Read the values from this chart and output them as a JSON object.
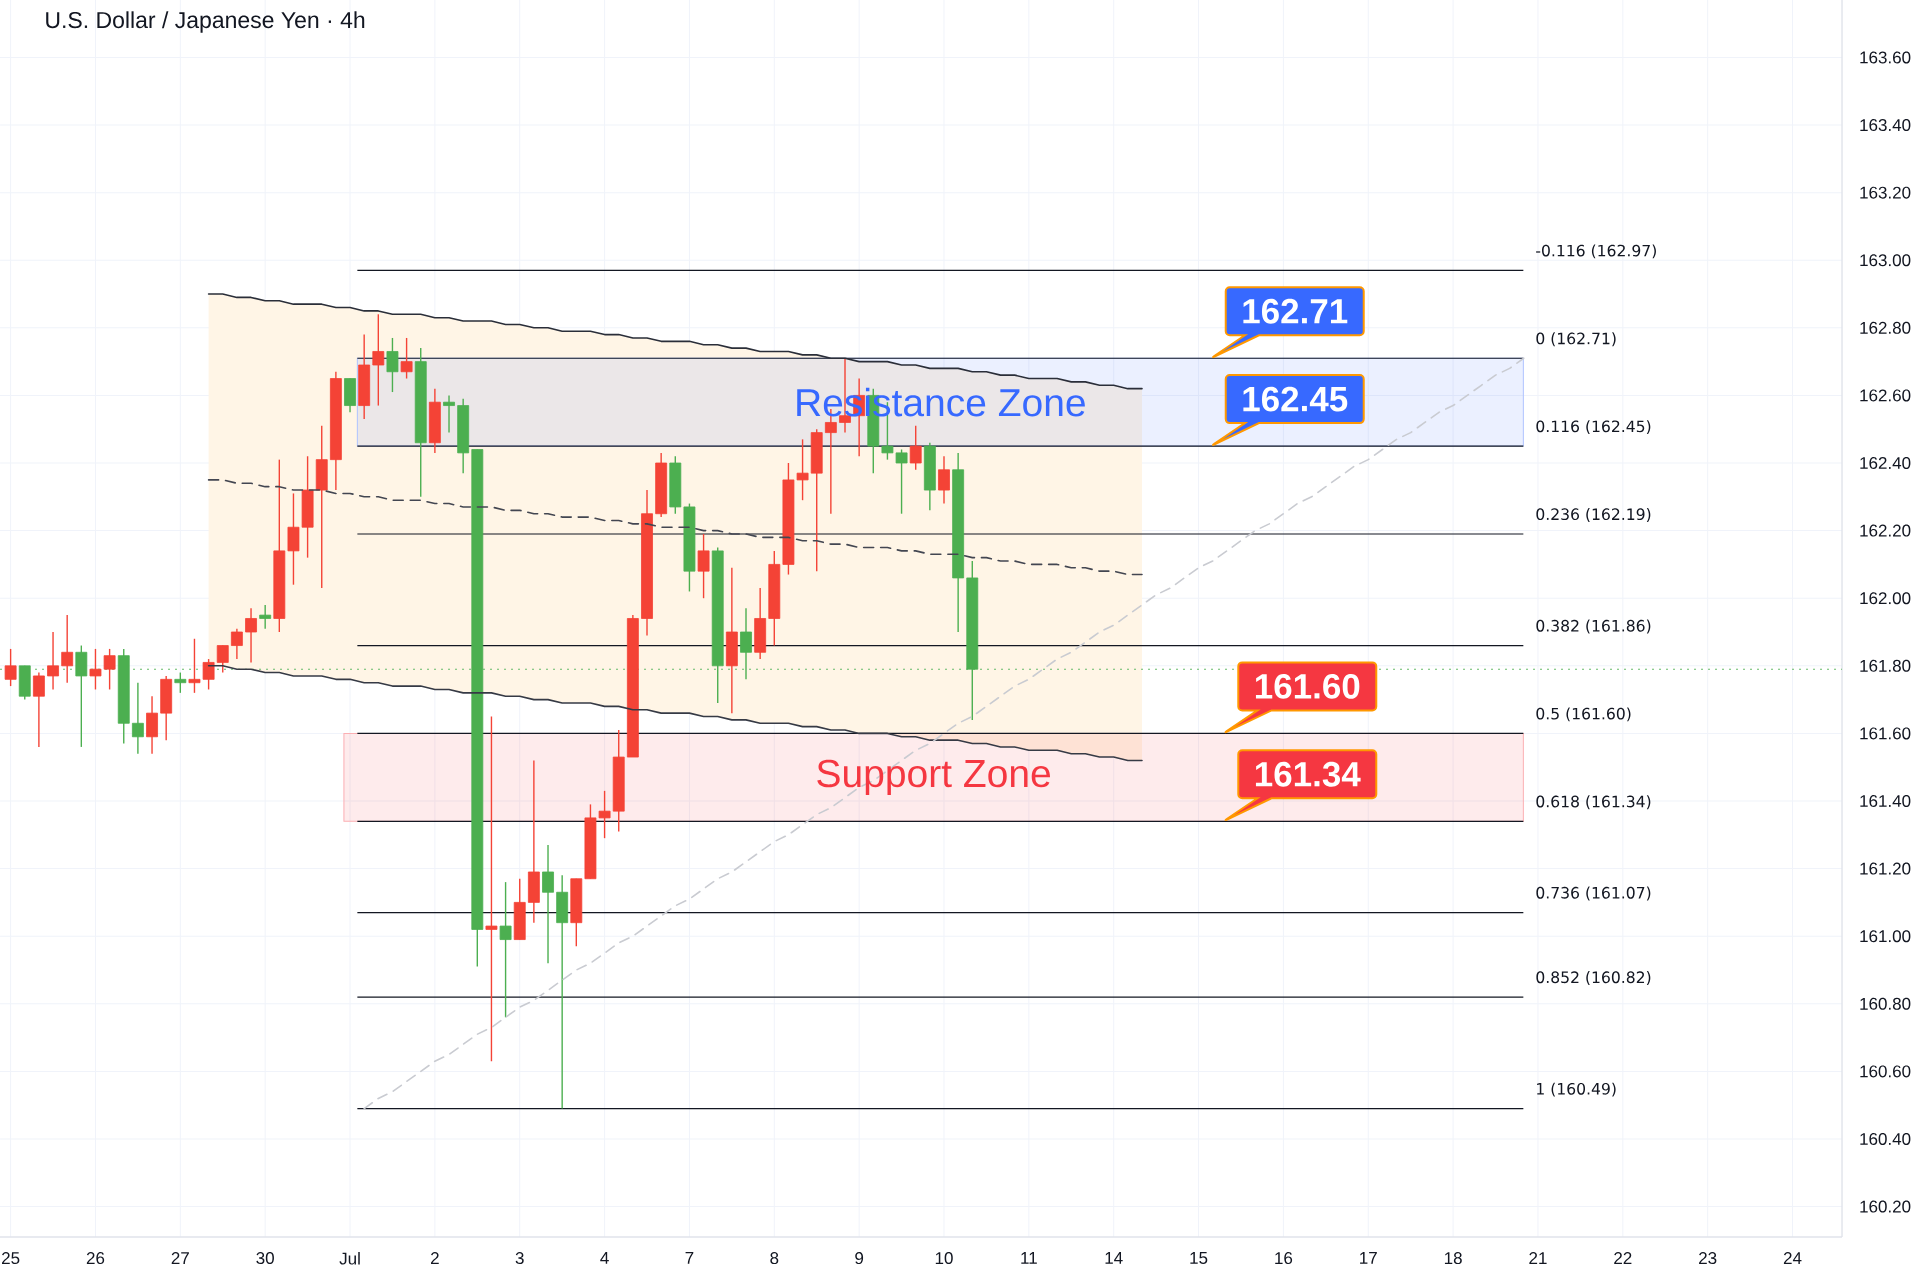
{
  "chart_data": {
    "type": "candlestick",
    "title": "U.S. Dollar / Japanese Yen · 4h",
    "categories": [
      "25",
      null,
      null,
      null,
      null,
      null,
      "26",
      null,
      null,
      null,
      null,
      null,
      "27",
      null,
      null,
      null,
      null,
      null,
      "30",
      null,
      null,
      null,
      null,
      null,
      "Jul",
      null,
      null,
      null,
      null,
      null,
      "2",
      null,
      null,
      null,
      null,
      null,
      "3",
      null,
      null,
      null,
      null,
      null,
      "4",
      null,
      null,
      null,
      null,
      null,
      "7",
      null,
      null,
      null,
      null,
      null,
      "8",
      null,
      null,
      null,
      null,
      null,
      "9",
      null,
      null,
      null,
      null,
      null,
      "10",
      null,
      null,
      null,
      null,
      null,
      "11",
      null,
      null,
      null,
      null,
      null,
      "14",
      null,
      null,
      null,
      null,
      null,
      "15",
      null,
      null,
      null,
      null,
      null,
      "16",
      null,
      null,
      null,
      null,
      null,
      "17",
      null,
      null,
      null,
      null,
      null,
      "18",
      null,
      null,
      null,
      null,
      null,
      "21",
      null,
      null,
      null,
      null,
      null,
      "22",
      null,
      null,
      null,
      null,
      null,
      "23",
      null,
      null,
      null,
      null,
      null,
      "24",
      null,
      null,
      null
    ],
    "ohlc": [
      [
        161.76,
        161.85,
        161.74,
        161.8
      ],
      [
        161.8,
        161.8,
        161.7,
        161.71
      ],
      [
        161.71,
        161.78,
        161.56,
        161.77
      ],
      [
        161.77,
        161.9,
        161.73,
        161.8
      ],
      [
        161.8,
        161.95,
        161.75,
        161.84
      ],
      [
        161.84,
        161.86,
        161.56,
        161.77
      ],
      [
        161.77,
        161.85,
        161.73,
        161.79
      ],
      [
        161.79,
        161.85,
        161.73,
        161.83
      ],
      [
        161.83,
        161.85,
        161.57,
        161.63
      ],
      [
        161.63,
        161.75,
        161.54,
        161.59
      ],
      [
        161.59,
        161.71,
        161.54,
        161.66
      ],
      [
        161.66,
        161.77,
        161.58,
        161.76
      ],
      [
        161.76,
        161.78,
        161.72,
        161.75
      ],
      [
        161.75,
        161.88,
        161.72,
        161.76
      ],
      [
        161.76,
        161.82,
        161.73,
        161.81
      ],
      [
        161.81,
        161.86,
        161.78,
        161.86
      ],
      [
        161.86,
        161.91,
        161.82,
        161.9
      ],
      [
        161.9,
        161.97,
        161.81,
        161.94
      ],
      [
        161.95,
        161.98,
        161.91,
        161.94
      ],
      [
        161.94,
        162.41,
        161.9,
        162.14
      ],
      [
        162.14,
        162.31,
        162.04,
        162.21
      ],
      [
        162.21,
        162.42,
        162.12,
        162.32
      ],
      [
        162.32,
        162.51,
        162.03,
        162.41
      ],
      [
        162.41,
        162.67,
        162.32,
        162.65
      ],
      [
        162.65,
        162.65,
        162.55,
        162.57
      ],
      [
        162.57,
        162.78,
        162.53,
        162.69
      ],
      [
        162.69,
        162.84,
        162.57,
        162.73
      ],
      [
        162.73,
        162.77,
        162.61,
        162.67
      ],
      [
        162.67,
        162.77,
        162.65,
        162.7
      ],
      [
        162.7,
        162.74,
        162.3,
        162.46
      ],
      [
        162.46,
        162.62,
        162.43,
        162.58
      ],
      [
        162.58,
        162.6,
        162.49,
        162.57
      ],
      [
        162.57,
        162.59,
        162.37,
        162.43
      ],
      [
        162.44,
        162.44,
        160.91,
        161.02
      ],
      [
        161.02,
        161.65,
        160.63,
        161.03
      ],
      [
        161.03,
        161.16,
        160.76,
        160.99
      ],
      [
        160.99,
        161.17,
        160.99,
        161.1
      ],
      [
        161.1,
        161.52,
        161.04,
        161.19
      ],
      [
        161.19,
        161.27,
        160.92,
        161.13
      ],
      [
        161.13,
        161.18,
        160.49,
        161.04
      ],
      [
        161.04,
        161.17,
        160.97,
        161.17
      ],
      [
        161.17,
        161.39,
        161.17,
        161.35
      ],
      [
        161.35,
        161.43,
        161.29,
        161.37
      ],
      [
        161.37,
        161.61,
        161.31,
        161.53
      ],
      [
        161.53,
        161.95,
        161.53,
        161.94
      ],
      [
        161.94,
        162.32,
        161.89,
        162.25
      ],
      [
        162.25,
        162.43,
        162.24,
        162.4
      ],
      [
        162.4,
        162.42,
        162.25,
        162.27
      ],
      [
        162.27,
        162.28,
        162.02,
        162.08
      ],
      [
        162.08,
        162.19,
        162.0,
        162.14
      ],
      [
        162.14,
        162.15,
        161.69,
        161.8
      ],
      [
        161.8,
        162.09,
        161.66,
        161.9
      ],
      [
        161.9,
        161.97,
        161.76,
        161.84
      ],
      [
        161.84,
        162.03,
        161.82,
        161.94
      ],
      [
        161.94,
        162.14,
        161.86,
        162.1
      ],
      [
        162.1,
        162.4,
        162.07,
        162.35
      ],
      [
        162.35,
        162.47,
        162.29,
        162.37
      ],
      [
        162.37,
        162.5,
        162.08,
        162.49
      ],
      [
        162.49,
        162.56,
        162.25,
        162.52
      ],
      [
        162.52,
        162.71,
        162.49,
        162.54
      ],
      [
        162.54,
        162.65,
        162.42,
        162.6
      ],
      [
        162.6,
        162.62,
        162.37,
        162.45
      ],
      [
        162.45,
        162.58,
        162.41,
        162.43
      ],
      [
        162.43,
        162.44,
        162.25,
        162.4
      ],
      [
        162.4,
        162.51,
        162.38,
        162.45
      ],
      [
        162.45,
        162.46,
        162.26,
        162.32
      ],
      [
        162.32,
        162.42,
        162.28,
        162.38
      ],
      [
        162.38,
        162.43,
        161.9,
        162.06
      ],
      [
        162.06,
        162.11,
        161.64,
        161.79
      ],
      null,
      null,
      null,
      null,
      null,
      null,
      null,
      null,
      null,
      null,
      null,
      null,
      null,
      null,
      null,
      null,
      null,
      null,
      null,
      null,
      null,
      null,
      null,
      null,
      null,
      null,
      null,
      null,
      null,
      null,
      null,
      null,
      null,
      null,
      null,
      null,
      null,
      null,
      null,
      null,
      null,
      null,
      null,
      null,
      null,
      null,
      null,
      null,
      null,
      null,
      null,
      null,
      null,
      null,
      null,
      null,
      null,
      null,
      null,
      null,
      null
    ],
    "colors": [
      "#f44336",
      "#4caf50",
      "#f44336",
      "#f44336",
      "#f44336",
      "#4caf50",
      "#f44336",
      "#f44336",
      "#4caf50",
      "#4caf50",
      "#f44336",
      "#f44336",
      "#4caf50",
      "#f44336",
      "#f44336",
      "#f44336",
      "#f44336",
      "#f44336",
      "#4caf50",
      "#f44336",
      "#f44336",
      "#f44336",
      "#f44336",
      "#f44336",
      "#4caf50",
      "#f44336",
      "#f44336",
      "#4caf50",
      "#f44336",
      "#4caf50",
      "#f44336",
      "#4caf50",
      "#4caf50",
      "#4caf50",
      "#f44336",
      "#4caf50",
      "#f44336",
      "#f44336",
      "#4caf50",
      "#4caf50",
      "#f44336",
      "#f44336",
      "#f44336",
      "#f44336",
      "#f44336",
      "#f44336",
      "#f44336",
      "#4caf50",
      "#4caf50",
      "#f44336",
      "#4caf50",
      "#f44336",
      "#4caf50",
      "#f44336",
      "#f44336",
      "#f44336",
      "#f44336",
      "#f44336",
      "#f44336",
      "#f44336",
      "#f44336",
      "#4caf50",
      "#4caf50",
      "#4caf50",
      "#f44336",
      "#4caf50",
      "#f44336",
      "#4caf50",
      "#4caf50",
      null,
      null,
      null,
      null,
      null,
      null,
      null,
      null,
      null,
      null,
      null,
      null,
      null,
      null,
      null,
      null,
      null,
      null,
      null,
      null,
      null,
      null,
      null,
      null,
      null,
      null,
      null,
      null,
      null,
      null,
      null,
      null,
      null,
      null,
      null,
      null,
      null,
      null,
      null,
      null,
      null,
      null,
      null,
      null,
      null,
      null,
      null,
      null,
      null,
      null,
      null,
      null,
      null,
      null,
      null,
      null,
      null,
      null,
      null,
      null,
      null
    ],
    "ylim": [
      160.11,
      163.77
    ],
    "yticks": [
      {
        "value": 160.2,
        "label": "160.20"
      },
      {
        "value": 160.4,
        "label": "160.40"
      },
      {
        "value": 160.6,
        "label": "160.60"
      },
      {
        "value": 160.8,
        "label": "160.80"
      },
      {
        "value": 161.0,
        "label": "161.00"
      },
      {
        "value": 161.2,
        "label": "161.20"
      },
      {
        "value": 161.4,
        "label": "161.40"
      },
      {
        "value": 161.6,
        "label": "161.60"
      },
      {
        "value": 161.8,
        "label": "161.80"
      },
      {
        "value": 162.0,
        "label": "162.00"
      },
      {
        "value": 162.2,
        "label": "162.20"
      },
      {
        "value": 162.4,
        "label": "162.40"
      },
      {
        "value": 162.6,
        "label": "162.60"
      },
      {
        "value": 162.8,
        "label": "162.80"
      },
      {
        "value": 163.0,
        "label": "163.00"
      },
      {
        "value": 163.2,
        "label": "163.20"
      },
      {
        "value": 163.4,
        "label": "163.40"
      },
      {
        "value": 163.6,
        "label": "163.60"
      }
    ],
    "grid": true,
    "series": [
      {
        "type": "line",
        "color": "#434651",
        "line_style": "dashed",
        "values": [
          null,
          null,
          null,
          null,
          null,
          null,
          null,
          null,
          null,
          null,
          null,
          null,
          null,
          null,
          162.35,
          162.35,
          162.34,
          162.34,
          162.33,
          162.33,
          162.32,
          162.32,
          162.32,
          162.31,
          162.31,
          162.3,
          162.3,
          162.29,
          162.29,
          162.29,
          162.28,
          162.28,
          162.27,
          162.27,
          162.27,
          162.26,
          162.26,
          162.25,
          162.25,
          162.24,
          162.24,
          162.24,
          162.23,
          162.23,
          162.22,
          162.22,
          162.21,
          162.21,
          162.21,
          162.2,
          162.2,
          162.19,
          162.19,
          162.18,
          162.18,
          162.18,
          162.17,
          162.17,
          162.16,
          162.16,
          162.15,
          162.15,
          162.15,
          162.14,
          162.14,
          162.13,
          162.13,
          162.13,
          162.12,
          162.12,
          162.11,
          162.11,
          162.1,
          162.1,
          162.1,
          162.09,
          162.09,
          162.08,
          162.08,
          162.07,
          162.07,
          null,
          null,
          null,
          null,
          null,
          null,
          null,
          null,
          null,
          null,
          null,
          null,
          null,
          null,
          null,
          null,
          null,
          null,
          null,
          null,
          null,
          null,
          null,
          null,
          null,
          null,
          null,
          null,
          null,
          null,
          null,
          null,
          null,
          null,
          null,
          null,
          null,
          null,
          null,
          null,
          null,
          null,
          null,
          null,
          null,
          null,
          null,
          null,
          null
        ],
        "upper": [
          null,
          null,
          null,
          null,
          null,
          null,
          null,
          null,
          null,
          null,
          null,
          null,
          null,
          null,
          162.9,
          162.9,
          162.89,
          162.89,
          162.88,
          162.88,
          162.87,
          162.87,
          162.87,
          162.86,
          162.86,
          162.85,
          162.85,
          162.84,
          162.84,
          162.84,
          162.83,
          162.83,
          162.82,
          162.82,
          162.82,
          162.81,
          162.81,
          162.8,
          162.8,
          162.79,
          162.79,
          162.79,
          162.78,
          162.78,
          162.77,
          162.77,
          162.76,
          162.76,
          162.76,
          162.75,
          162.75,
          162.74,
          162.74,
          162.73,
          162.73,
          162.73,
          162.72,
          162.72,
          162.71,
          162.71,
          162.7,
          162.7,
          162.7,
          162.69,
          162.69,
          162.68,
          162.68,
          162.68,
          162.67,
          162.67,
          162.66,
          162.66,
          162.65,
          162.65,
          162.65,
          162.64,
          162.64,
          162.63,
          162.63,
          162.62,
          162.62,
          null,
          null,
          null,
          null,
          null,
          null,
          null,
          null,
          null,
          null,
          null,
          null,
          null,
          null,
          null,
          null,
          null,
          null,
          null,
          null,
          null,
          null,
          null,
          null,
          null,
          null,
          null,
          null,
          null,
          null,
          null,
          null,
          null,
          null,
          null,
          null,
          null,
          null,
          null,
          null,
          null,
          null,
          null,
          null,
          null,
          null,
          null,
          null,
          null
        ],
        "lower": [
          null,
          null,
          null,
          null,
          null,
          null,
          null,
          null,
          null,
          null,
          null,
          null,
          null,
          null,
          161.8,
          161.8,
          161.79,
          161.79,
          161.78,
          161.78,
          161.77,
          161.77,
          161.77,
          161.76,
          161.76,
          161.75,
          161.75,
          161.74,
          161.74,
          161.74,
          161.73,
          161.73,
          161.72,
          161.72,
          161.72,
          161.71,
          161.71,
          161.7,
          161.7,
          161.69,
          161.69,
          161.69,
          161.68,
          161.68,
          161.67,
          161.67,
          161.66,
          161.66,
          161.66,
          161.65,
          161.65,
          161.64,
          161.64,
          161.63,
          161.63,
          161.63,
          161.62,
          161.62,
          161.61,
          161.61,
          161.6,
          161.6,
          161.6,
          161.59,
          161.59,
          161.58,
          161.58,
          161.58,
          161.57,
          161.57,
          161.56,
          161.56,
          161.55,
          161.55,
          161.55,
          161.54,
          161.54,
          161.53,
          161.53,
          161.52,
          161.52,
          null,
          null,
          null,
          null,
          null,
          null,
          null,
          null,
          null,
          null,
          null,
          null,
          null,
          null,
          null,
          null,
          null,
          null,
          null,
          null,
          null,
          null,
          null,
          null,
          null,
          null,
          null,
          null,
          null,
          null,
          null,
          null,
          null,
          null,
          null,
          null,
          null,
          null,
          null,
          null,
          null,
          null,
          null,
          null,
          null,
          null,
          null,
          null,
          null
        ]
      },
      {
        "type": "line",
        "color": "#2a2e39",
        "values": [
          null,
          null,
          null,
          null,
          null,
          null,
          null,
          null,
          null,
          null,
          null,
          null,
          null,
          null,
          162.9,
          162.9,
          162.89,
          162.89,
          162.88,
          162.88,
          162.87,
          162.87,
          162.87,
          162.86,
          162.86,
          162.85,
          162.85,
          162.84,
          162.84,
          162.84,
          162.83,
          162.83,
          162.82,
          162.82,
          162.82,
          162.81,
          162.81,
          162.8,
          162.8,
          162.79,
          162.79,
          162.79,
          162.78,
          162.78,
          162.77,
          162.77,
          162.76,
          162.76,
          162.76,
          162.75,
          162.75,
          162.74,
          162.74,
          162.73,
          162.73,
          162.73,
          162.72,
          162.72,
          162.71,
          162.71,
          162.7,
          162.7,
          162.7,
          162.69,
          162.69,
          162.68,
          162.68,
          162.68,
          162.67,
          162.67,
          162.66,
          162.66,
          162.65,
          162.65,
          162.65,
          162.64,
          162.64,
          162.63,
          162.63,
          162.62,
          162.62,
          null,
          null,
          null,
          null,
          null,
          null,
          null,
          null,
          null,
          null,
          null,
          null,
          null,
          null,
          null,
          null,
          null,
          null,
          null,
          null,
          null,
          null,
          null,
          null,
          null,
          null,
          null,
          null,
          null,
          null,
          null,
          null,
          null,
          null,
          null,
          null,
          null,
          null,
          null,
          null,
          null,
          null,
          null,
          null,
          null,
          null,
          null,
          null,
          null
        ]
      },
      {
        "type": "line",
        "color": "#363a45",
        "values": [
          null,
          null,
          null,
          null,
          null,
          null,
          null,
          null,
          null,
          null,
          null,
          null,
          null,
          null,
          161.8,
          161.8,
          161.79,
          161.79,
          161.78,
          161.78,
          161.77,
          161.77,
          161.77,
          161.76,
          161.76,
          161.75,
          161.75,
          161.74,
          161.74,
          161.74,
          161.73,
          161.73,
          161.72,
          161.72,
          161.72,
          161.71,
          161.71,
          161.7,
          161.7,
          161.69,
          161.69,
          161.69,
          161.68,
          161.68,
          161.67,
          161.67,
          161.66,
          161.66,
          161.66,
          161.65,
          161.65,
          161.64,
          161.64,
          161.63,
          161.63,
          161.63,
          161.62,
          161.62,
          161.61,
          161.61,
          161.6,
          161.6,
          161.6,
          161.59,
          161.59,
          161.58,
          161.58,
          161.58,
          161.57,
          161.57,
          161.56,
          161.56,
          161.55,
          161.55,
          161.55,
          161.54,
          161.54,
          161.53,
          161.53,
          161.52,
          161.52,
          null,
          null,
          null,
          null,
          null,
          null,
          null,
          null,
          null,
          null,
          null,
          null,
          null,
          null,
          null,
          null,
          null,
          null,
          null,
          null,
          null,
          null,
          null,
          null,
          null,
          null,
          null,
          null,
          null,
          null,
          null,
          null,
          null,
          null,
          null,
          null,
          null,
          null,
          null,
          null,
          null,
          null,
          null,
          null,
          null,
          null,
          null,
          null,
          null
        ]
      },
      {
        "type": "line",
        "color": "#c9cbd1",
        "line_style": "dashed",
        "values": [
          null,
          null,
          null,
          null,
          null,
          null,
          null,
          null,
          null,
          null,
          null,
          null,
          null,
          null,
          null,
          null,
          null,
          null,
          null,
          null,
          null,
          null,
          null,
          null,
          null,
          160.49,
          160.52,
          160.54,
          160.57,
          160.6,
          160.63,
          160.65,
          160.68,
          160.71,
          160.73,
          160.76,
          160.79,
          160.81,
          160.84,
          160.87,
          160.9,
          160.92,
          160.95,
          160.98,
          161.0,
          161.03,
          161.06,
          161.09,
          161.11,
          161.14,
          161.17,
          161.19,
          161.22,
          161.25,
          161.28,
          161.3,
          161.33,
          161.36,
          161.38,
          161.41,
          161.44,
          161.46,
          161.49,
          161.52,
          161.55,
          161.57,
          161.6,
          161.63,
          161.65,
          161.68,
          161.71,
          161.74,
          161.76,
          161.79,
          161.82,
          161.84,
          161.87,
          161.9,
          161.92,
          161.95,
          161.98,
          162.01,
          162.03,
          162.06,
          162.09,
          162.11,
          162.14,
          162.17,
          162.2,
          162.22,
          162.25,
          162.28,
          162.3,
          162.33,
          162.36,
          162.39,
          162.41,
          162.44,
          162.47,
          162.49,
          162.52,
          162.55,
          162.57,
          162.6,
          162.63,
          162.66,
          162.68,
          162.71,
          null,
          null,
          null,
          null,
          null,
          null,
          null,
          null,
          null,
          null,
          null,
          null,
          null,
          null,
          null,
          null,
          null,
          null,
          null,
          null,
          null,
          null
        ]
      }
    ],
    "bands": [
      {
        "axis": "y",
        "from": 162.45,
        "to": 162.71,
        "label": "Resistance Zone",
        "color": "#ebf0ff"
      },
      {
        "axis": "y",
        "from": 161.34,
        "to": 161.6,
        "label": "Support Zone",
        "color": "#feebec"
      }
    ],
    "ref_lines": [
      {
        "axis": "y",
        "value": 162.97,
        "label": "-0.116 (162.97)",
        "color": "#131722"
      },
      {
        "axis": "y",
        "value": 162.71,
        "label": "0 (162.71)",
        "color": "#131722"
      },
      {
        "axis": "y",
        "value": 162.45,
        "label": "0.116 (162.45)",
        "color": "#131722"
      },
      {
        "axis": "y",
        "value": 162.19,
        "label": "0.236 (162.19)",
        "color": "#131722"
      },
      {
        "axis": "y",
        "value": 161.86,
        "label": "0.382 (161.86)",
        "color": "#131722"
      },
      {
        "axis": "y",
        "value": 161.6,
        "label": "0.5 (161.60)",
        "color": "#131722"
      },
      {
        "axis": "y",
        "value": 161.34,
        "label": "0.618 (161.34)",
        "color": "#131722"
      },
      {
        "axis": "y",
        "value": 161.07,
        "label": "0.736 (161.07)",
        "color": "#131722"
      },
      {
        "axis": "y",
        "value": 160.82,
        "label": "0.852 (160.82)",
        "color": "#131722"
      },
      {
        "axis": "y",
        "value": 160.49,
        "label": "1 (160.49)",
        "color": "#131722"
      },
      {
        "axis": "y",
        "value": 161.79,
        "color": "#66bb6a",
        "line_style": "dotted"
      }
    ],
    "annotations": [
      {
        "text": "162.71",
        "y": 162.71
      },
      {
        "text": "162.45",
        "y": 162.45
      },
      {
        "text": "161.60",
        "y": 161.6
      },
      {
        "text": "161.34",
        "y": 161.34
      }
    ]
  }
}
